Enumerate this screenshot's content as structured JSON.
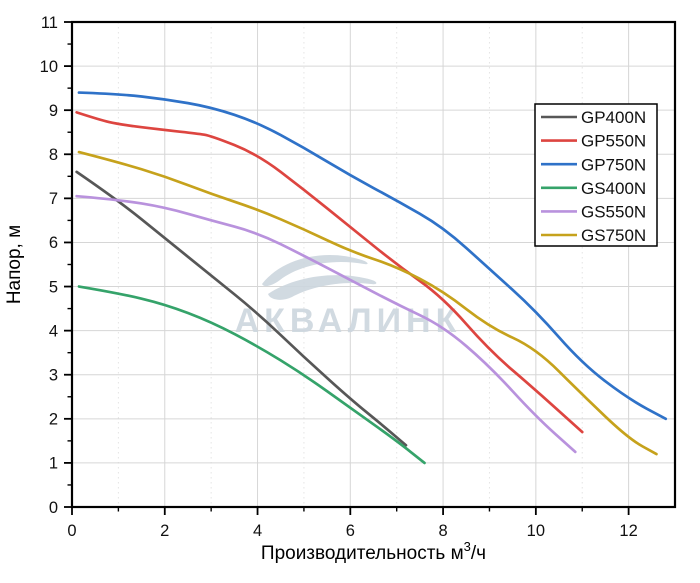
{
  "chart_data": {
    "type": "line",
    "title": "",
    "xlabel_base": "Производительность м",
    "xlabel_sup": "3",
    "xlabel_suffix": "/ч",
    "ylabel": "Напор, м",
    "xlim": [
      0,
      13
    ],
    "ylim": [
      0,
      11
    ],
    "x_major_ticks": [
      0,
      2,
      4,
      6,
      8,
      10,
      12
    ],
    "x_minor_ticks": [
      1,
      3,
      5,
      7,
      9,
      11
    ],
    "y_major_ticks": [
      0,
      1,
      2,
      3,
      4,
      5,
      6,
      7,
      8,
      9,
      10,
      11
    ],
    "grid": {
      "horizontal_major": true,
      "vertical_major_solid": true,
      "vertical_minor_dotted": true
    },
    "legend_position": "top-right",
    "frame": "box",
    "series": [
      {
        "name": "GP400N",
        "color": "#575757",
        "points": [
          [
            0.1,
            7.6
          ],
          [
            1,
            6.95
          ],
          [
            2,
            6.1
          ],
          [
            3,
            5.25
          ],
          [
            4,
            4.4
          ],
          [
            5,
            3.4
          ],
          [
            6,
            2.45
          ],
          [
            6.7,
            1.85
          ],
          [
            7.2,
            1.4
          ]
        ]
      },
      {
        "name": "GP550N",
        "color": "#dd4540",
        "points": [
          [
            0.1,
            8.95
          ],
          [
            0.6,
            8.78
          ],
          [
            1,
            8.68
          ],
          [
            2,
            8.55
          ],
          [
            2.7,
            8.47
          ],
          [
            3,
            8.42
          ],
          [
            4,
            8.0
          ],
          [
            5,
            7.2
          ],
          [
            6,
            6.35
          ],
          [
            7,
            5.5
          ],
          [
            8,
            4.75
          ],
          [
            9,
            3.55
          ],
          [
            10,
            2.65
          ],
          [
            11,
            1.7
          ]
        ]
      },
      {
        "name": "GP750N",
        "color": "#2f72c8",
        "points": [
          [
            0.15,
            9.4
          ],
          [
            1,
            9.37
          ],
          [
            2,
            9.25
          ],
          [
            3,
            9.07
          ],
          [
            4,
            8.72
          ],
          [
            5,
            8.15
          ],
          [
            6,
            7.52
          ],
          [
            7,
            6.95
          ],
          [
            8,
            6.35
          ],
          [
            9,
            5.4
          ],
          [
            10,
            4.45
          ],
          [
            11,
            3.25
          ],
          [
            12,
            2.45
          ],
          [
            12.8,
            2.0
          ]
        ]
      },
      {
        "name": "GS400N",
        "color": "#35a36a",
        "points": [
          [
            0.15,
            5.0
          ],
          [
            1,
            4.85
          ],
          [
            2,
            4.6
          ],
          [
            3,
            4.2
          ],
          [
            4,
            3.65
          ],
          [
            5,
            3.0
          ],
          [
            6,
            2.25
          ],
          [
            7,
            1.5
          ],
          [
            7.6,
            1.0
          ]
        ]
      },
      {
        "name": "GS550N",
        "color": "#b992dd",
        "points": [
          [
            0.1,
            7.05
          ],
          [
            1,
            6.97
          ],
          [
            2,
            6.8
          ],
          [
            3,
            6.5
          ],
          [
            4,
            6.22
          ],
          [
            5,
            5.7
          ],
          [
            6,
            5.15
          ],
          [
            7,
            4.6
          ],
          [
            8,
            4.1
          ],
          [
            9,
            3.2
          ],
          [
            10,
            2.05
          ],
          [
            10.85,
            1.25
          ]
        ]
      },
      {
        "name": "GS750N",
        "color": "#c6a21c",
        "points": [
          [
            0.15,
            8.05
          ],
          [
            1,
            7.82
          ],
          [
            2,
            7.5
          ],
          [
            3,
            7.1
          ],
          [
            4,
            6.75
          ],
          [
            5,
            6.3
          ],
          [
            6,
            5.8
          ],
          [
            7,
            5.45
          ],
          [
            8,
            4.9
          ],
          [
            9,
            4.08
          ],
          [
            10,
            3.6
          ],
          [
            11,
            2.55
          ],
          [
            12,
            1.55
          ],
          [
            12.6,
            1.2
          ]
        ]
      }
    ]
  },
  "legend": {
    "items": [
      "GP400N",
      "GP550N",
      "GP750N",
      "GS400N",
      "GS550N",
      "GS750N"
    ]
  },
  "watermark": {
    "text": "АКВАЛИНК",
    "color": "#cdd6de"
  },
  "style_colors": {
    "axis": "#000000",
    "grid_major": "#d6d6d6",
    "grid_minor": "#e4e4e4",
    "tick_label": "#111111"
  }
}
